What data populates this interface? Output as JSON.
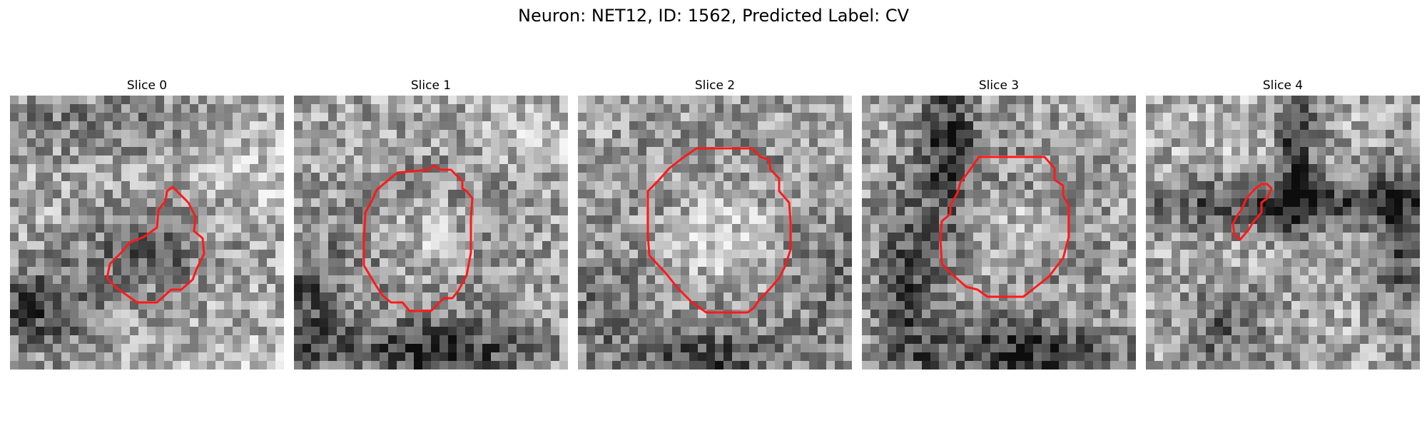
{
  "figure": {
    "title": "Neuron: NET12, ID: 1562, Predicted Label: CV"
  },
  "colors": {
    "contour": "#ff1a1a",
    "background": "#ffffff"
  },
  "panels": [
    {
      "title": "Slice 0"
    },
    {
      "title": "Slice 1"
    },
    {
      "title": "Slice 2"
    },
    {
      "title": "Slice 3"
    },
    {
      "title": "Slice 4"
    }
  ]
}
